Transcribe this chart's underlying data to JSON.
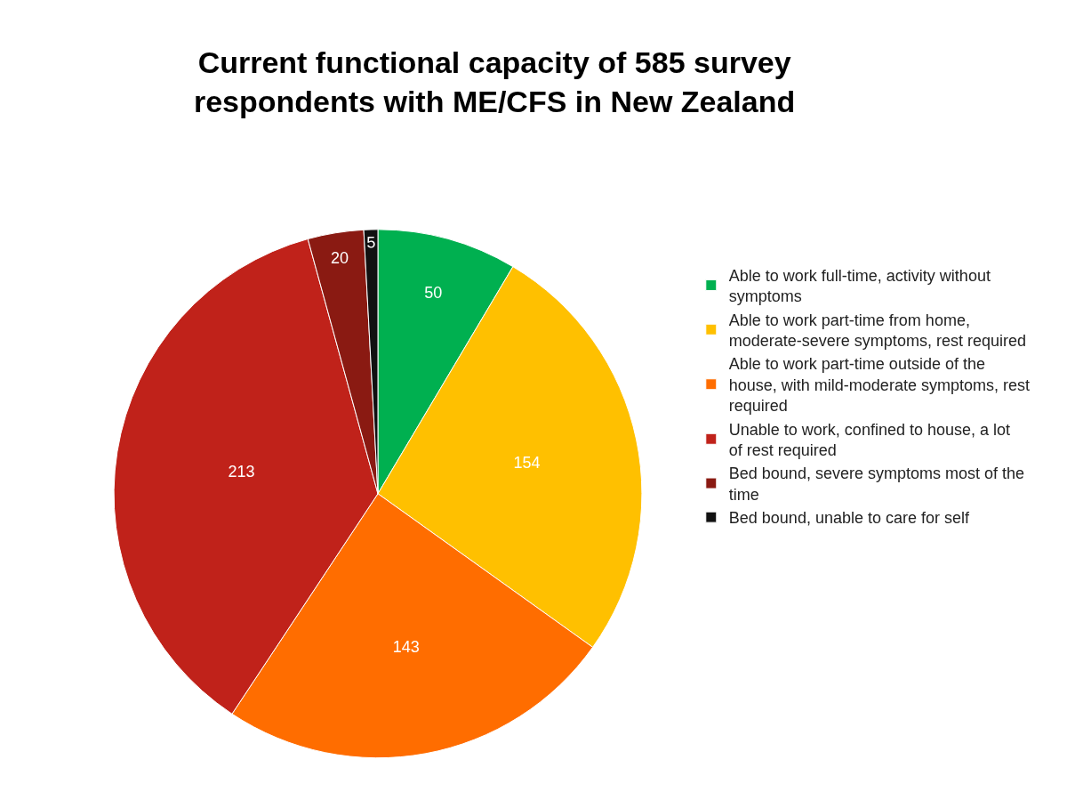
{
  "chart_data": {
    "type": "pie",
    "title": "Current functional capacity of 585 survey respondents with ME/CFS in New Zealand",
    "categories": [
      "Able to work full-time, activity without symptoms",
      "Able to work part-time from home, moderate-severe symptoms, rest required",
      "Able to work part-time outside of the house, with mild-moderate symptoms, rest required",
      "Unable to work, confined to house, a lot of rest required",
      "Bed bound, severe symptoms most of the time",
      "Bed bound, unable to care for self"
    ],
    "values": [
      50,
      154,
      143,
      213,
      20,
      5
    ],
    "colors": [
      "#00b050",
      "#ffc000",
      "#ff6d00",
      "#c0221a",
      "#8a1a12",
      "#111111"
    ],
    "data_labels": true,
    "legend": "right"
  }
}
